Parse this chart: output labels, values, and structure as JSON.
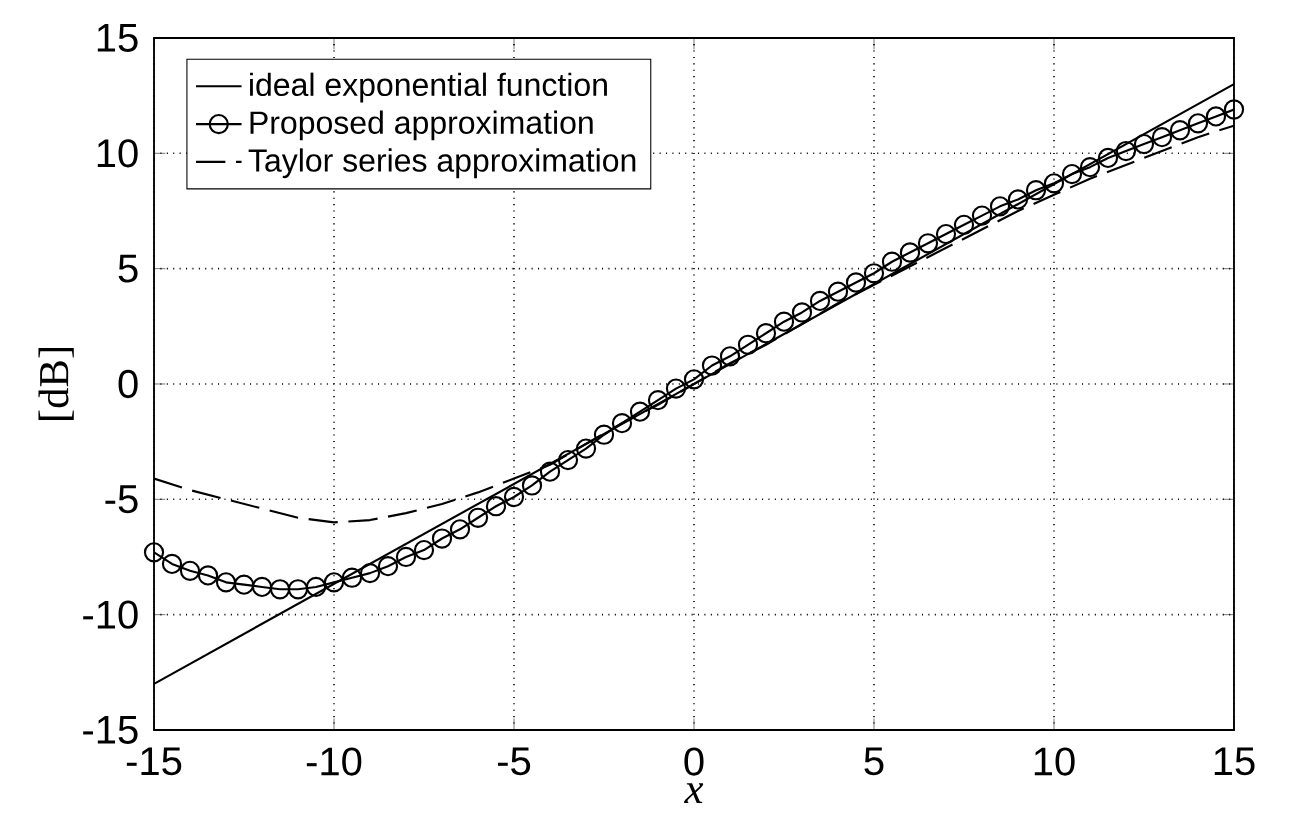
{
  "chart_data": {
    "type": "line",
    "xlabel": "*x*",
    "ylabel": "[dB]",
    "xlim": [
      -15,
      15
    ],
    "ylim": [
      -15,
      15
    ],
    "xticks": [
      -15,
      -10,
      -5,
      0,
      5,
      10,
      15
    ],
    "yticks": [
      -15,
      -10,
      -5,
      0,
      5,
      10,
      15
    ],
    "grid": true,
    "legend": "top left",
    "series": [
      {
        "name": "ideal exponential function",
        "color": "#000000",
        "line_style": "solid",
        "marker": "none",
        "x": [
          -15,
          15
        ],
        "values": [
          -13,
          13
        ]
      },
      {
        "name": "Proposed approximation",
        "color": "#000000",
        "line_style": "solid",
        "marker": "circle",
        "x": [
          -15,
          -14.5,
          -14,
          -13.5,
          -13,
          -12.5,
          -12,
          -11.5,
          -11,
          -10.5,
          -10,
          -9.5,
          -9,
          -8.5,
          -8,
          -7.5,
          -7,
          -6.5,
          -6,
          -5.5,
          -5,
          -4.5,
          -4,
          -3.5,
          -3,
          -2.5,
          -2,
          -1.5,
          -1,
          -0.5,
          0,
          0.5,
          1,
          1.5,
          2,
          2.5,
          3,
          3.5,
          4,
          4.5,
          5,
          5.5,
          6,
          6.5,
          7,
          7.5,
          8,
          8.5,
          9,
          9.5,
          10,
          10.5,
          11,
          11.5,
          12,
          12.5,
          13,
          13.5,
          14,
          14.5,
          15
        ],
        "values": [
          -7.3,
          -7.8,
          -8.1,
          -8.3,
          -8.6,
          -8.7,
          -8.8,
          -8.9,
          -8.9,
          -8.8,
          -8.6,
          -8.4,
          -8.2,
          -7.9,
          -7.5,
          -7.2,
          -6.7,
          -6.3,
          -5.8,
          -5.3,
          -4.9,
          -4.4,
          -3.8,
          -3.3,
          -2.8,
          -2.2,
          -1.7,
          -1.2,
          -0.7,
          -0.2,
          0.2,
          0.8,
          1.2,
          1.7,
          2.2,
          2.7,
          3.1,
          3.6,
          4.0,
          4.4,
          4.8,
          5.3,
          5.7,
          6.1,
          6.5,
          6.9,
          7.3,
          7.7,
          8.0,
          8.4,
          8.7,
          9.1,
          9.4,
          9.8,
          10.1,
          10.4,
          10.7,
          11.0,
          11.3,
          11.6,
          11.9
        ]
      },
      {
        "name": "Taylor series approximation",
        "color": "#000000",
        "line_style": "dashed",
        "marker": "none",
        "x": [
          -15,
          -14,
          -13,
          -12,
          -11,
          -10,
          -9,
          -8,
          -7,
          -6,
          -5,
          -4,
          -3,
          -2,
          -1,
          0,
          1,
          2,
          3,
          4,
          5,
          6,
          7,
          8,
          9,
          10,
          11,
          12,
          13,
          14,
          15
        ],
        "values": [
          -4.1,
          -4.6,
          -5.0,
          -5.4,
          -5.8,
          -6.0,
          -5.9,
          -5.6,
          -5.2,
          -4.7,
          -4.1,
          -3.5,
          -2.6,
          -1.7,
          -0.9,
          0,
          0.9,
          1.7,
          2.6,
          3.5,
          4.3,
          5.1,
          5.9,
          6.7,
          7.5,
          8.2,
          8.9,
          9.5,
          10.1,
          10.7,
          11.2
        ]
      }
    ]
  }
}
